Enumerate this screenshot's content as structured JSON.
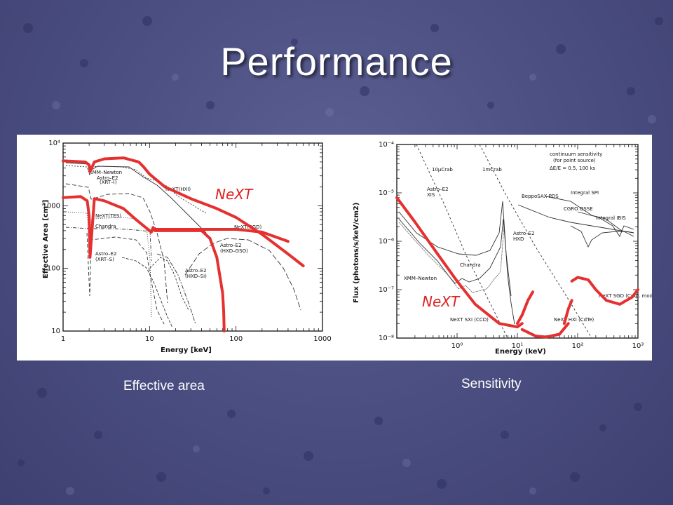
{
  "slide": {
    "title": "Performance",
    "caption_left": "Effective area",
    "caption_right": "Sensitivity"
  },
  "colors": {
    "highlight": "#e53030",
    "background": "#4d5083",
    "text": "#ffffff"
  },
  "chart_data": [
    {
      "type": "line",
      "ylabel": "Effective Area [cm²]",
      "xlabel": "Energy [keV]",
      "x_scale": "log",
      "y_scale": "log",
      "xlim": [
        1,
        1000
      ],
      "ylim": [
        10,
        10000
      ],
      "x_ticks": [
        "1",
        "10",
        "100",
        "1000"
      ],
      "y_ticks": [
        "10",
        "100",
        "1000",
        "10⁴"
      ],
      "grid": false,
      "highlight_label": "NeXT",
      "annotations": [
        "XMM–Newton",
        "Astro–E2",
        "(XRT–I)",
        "NeXT(HXI)",
        "NeXT(TES)",
        "Chandra",
        "NeXT(SGD)",
        "Astro–E2",
        "(XRT–S)",
        "Astro–E2",
        "(HXD–GSO)",
        "Astro–E2",
        "(HXD–Si)"
      ],
      "series": [
        {
          "x": [
            1.0,
            1.8,
            2.0,
            2.05,
            2.3,
            3.0,
            5.0,
            7.5,
            8.5,
            10,
            15,
            30,
            60,
            100,
            200,
            400,
            600
          ],
          "y": [
            5200,
            5000,
            4500,
            3500,
            5000,
            5600,
            5800,
            5000,
            4200,
            3200,
            2000,
            1300,
            900,
            650,
            350,
            170,
            110
          ]
        },
        {
          "x": [
            1.0,
            1.6,
            1.9,
            2.0,
            2.05,
            2.3,
            3.0,
            5.0,
            7.0,
            9.0,
            10.5,
            11.0,
            11.5,
            15,
            30,
            40,
            50,
            60,
            70,
            72,
            73
          ],
          "y": [
            1350,
            1400,
            1200,
            700,
            150,
            1300,
            1200,
            900,
            600,
            450,
            380,
            450,
            400,
            400,
            400,
            400,
            300,
            150,
            40,
            20,
            10
          ]
        },
        {
          "x": [
            11,
            30,
            60,
            100,
            200,
            400
          ],
          "y": [
            420,
            420,
            420,
            420,
            380,
            270
          ]
        }
      ]
    },
    {
      "type": "line",
      "ylabel": "Flux (photons/s/keV/cm2)",
      "xlabel": "Energy (keV)",
      "x_scale": "log",
      "y_scale": "log",
      "xlim": [
        0.1,
        1000
      ],
      "ylim": [
        1e-08,
        0.0001
      ],
      "x_ticks": [
        "10⁰",
        "10¹",
        "10²",
        "10³"
      ],
      "y_ticks": [
        "10⁻⁴",
        "10⁻⁵",
        "10⁻⁶",
        "10⁻⁷",
        "10⁻⁸"
      ],
      "grid": false,
      "highlight_label": "NeXT",
      "annotations": [
        "continuum sensitivity",
        "(for point source)",
        "ΔE/E = 0.5, 100 ks",
        "10μCrab",
        "1mCrab",
        "Astro–E2",
        "XIS",
        "BeppoSAX PDS",
        "Integral SPI",
        "CGRO OSSE",
        "Integral IBIS",
        "Astro–E2",
        "HXD",
        "Chandra",
        "XMM–Newton",
        "NeXT SGD (Cmp. mode)",
        "NeXT SXI (CCD)",
        "NeXT HXI (CdTe)"
      ],
      "series": [
        {
          "x": [
            0.1,
            0.2,
            0.5,
            1.0,
            2.0,
            5.0,
            10,
            12
          ],
          "y": [
            8e-06,
            2.5e-06,
            5e-07,
            1.5e-07,
            5e-08,
            2e-08,
            1.7e-08,
            2e-08
          ]
        },
        {
          "x": [
            10,
            12,
            15,
            18
          ],
          "y": [
            2e-08,
            3e-08,
            6e-08,
            9e-08
          ]
        },
        {
          "x": [
            12,
            20,
            30,
            50,
            70
          ],
          "y": [
            1.5e-08,
            1.1e-08,
            1.05e-08,
            1.2e-08,
            2e-08
          ]
        },
        {
          "x": [
            60,
            70,
            80
          ],
          "y": [
            2e-08,
            4e-08,
            6e-08
          ]
        },
        {
          "x": [
            80,
            100,
            150,
            200,
            300,
            500,
            800,
            1000
          ],
          "y": [
            1.5e-07,
            1.8e-07,
            1.6e-07,
            1e-07,
            6e-08,
            5e-08,
            7e-08,
            1e-07
          ]
        }
      ]
    }
  ]
}
